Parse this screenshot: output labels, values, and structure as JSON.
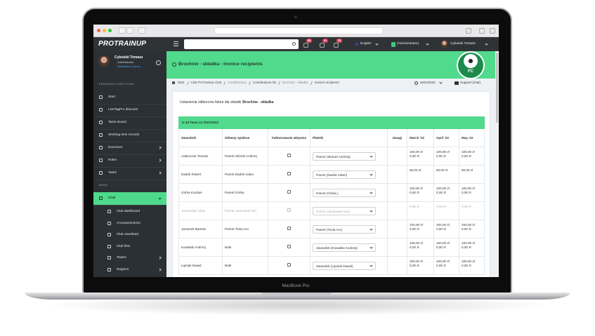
{
  "device": {
    "label": "MacBook Pro"
  },
  "header": {
    "logo": "PROTRAINUP",
    "badges": [
      "69",
      "51",
      "74"
    ],
    "language": "English",
    "role": "(Administrator)",
    "user": "Cybulski Tomasz"
  },
  "sidebar": {
    "user": {
      "name": "Cybulski Tomasz",
      "role": "Administrator",
      "plan": "Dedicated Custom"
    },
    "sections": [
      {
        "title": "PERSONAL FUNCTIONS",
        "items": [
          {
            "label": "Start",
            "expandable": false
          },
          {
            "label": "LiveTagPro discount",
            "expandable": false
          },
          {
            "label": "Tactic Board",
            "expandable": false
          },
          {
            "label": "Working time records",
            "expandable": false
          },
          {
            "label": "Exercises",
            "expandable": true
          },
          {
            "label": "Roles",
            "expandable": true
          },
          {
            "label": "Tasks",
            "expandable": true
          }
        ]
      },
      {
        "title": "MENU",
        "items": [
          {
            "label": "Club",
            "expandable": true,
            "active": true,
            "children": [
              {
                "label": "Club dashboard",
                "expandable": false
              },
              {
                "label": "Announcements",
                "expandable": false
              },
              {
                "label": "Club newsfeed",
                "expandable": false
              },
              {
                "label": "Club files",
                "expandable": false
              },
              {
                "label": "Teams",
                "expandable": true
              },
              {
                "label": "Regions",
                "expandable": true
              }
            ]
          }
        ]
      }
    ]
  },
  "page": {
    "title": "Brochów - składka - Invoice recipients",
    "badge": "FC",
    "breadcrumbs": [
      "Start",
      "Club ProTrainUp Club",
      "Contributions",
      "Contributions list",
      "Brochów - składka",
      "Invoice recipients"
    ],
    "season": "2021/2022",
    "support": "Support (chat)"
  },
  "card": {
    "intro": "Ustawienia odbiorców faktur dla składki",
    "intro_strong": "Brochów - składka"
  },
  "table": {
    "group": "U-19 Team 12 2021/2022",
    "columns": [
      "Zawodnik",
      "Główny opiekun",
      "Fakturowanie aktywne",
      "Płatnik",
      "Uwagi",
      "March '22",
      "April '22",
      "May '22"
    ],
    "rows": [
      {
        "player": "Adamczuk Tomasz",
        "guardian": "Parent Skóraś Andrzej",
        "invoicing": false,
        "payer": "Parent (Skóraś Andrzej)",
        "months": [
          [
            "100,00 zł",
            "0,00 zł"
          ],
          [
            "100,00 zł",
            "0,00 zł"
          ],
          [
            "100,00 zł",
            "0,00 zł"
          ]
        ]
      },
      {
        "player": "Dadok Robert",
        "guardian": "Parent Dadok Adam",
        "invoicing": false,
        "payer": "Parent (Dadok Adam)",
        "months": [
          [
            "50,00 zł"
          ],
          [
            "50,00 zł"
          ],
          [
            "50,00 zł"
          ]
        ]
      },
      {
        "player": "Górka Kordian",
        "guardian": "Parent Górka",
        "invoicing": false,
        "payer": "Parent (Górka )",
        "months": [
          [
            "100,00 zł",
            "0,00 zł"
          ],
          [
            "100,00 zł",
            "0,00 zł"
          ],
          [
            "100,00 zł",
            "0,00 zł"
          ]
        ]
      },
      {
        "player": "Jankowiak Adam",
        "guardian": "Parent Jankowiak test",
        "invoicing": false,
        "payer": "Parent (Jankowiak test)",
        "inactive": true,
        "months": [
          [
            "0,00 zł"
          ],
          [
            "0,00 zł"
          ],
          [
            "0,00 zł"
          ]
        ]
      },
      {
        "player": "Jaroszek Bartosz",
        "guardian": "Parent Tonia Aro",
        "invoicing": false,
        "payer": "Parent (Tonia Aro)",
        "months": [
          [
            "100,00 zł",
            "0,00 zł"
          ],
          [
            "100,00 zł",
            "0,00 zł"
          ],
          [
            "100,00 zł",
            "0,00 zł"
          ]
        ]
      },
      {
        "player": "Kowalski Andrzej",
        "guardian": "Brak",
        "invoicing": false,
        "payer": "Zawodnik (Kowalski Andrzej)",
        "months": [
          [
            "100,00 zł",
            "0,00 zł"
          ],
          [
            "100,00 zł",
            "0,00 zł"
          ],
          [
            "100,00 zł",
            "0,00 zł"
          ]
        ]
      },
      {
        "player": "Lipniak Dawid",
        "guardian": "Brak",
        "invoicing": false,
        "payer": "Zawodnik (Lipniak Dawid)",
        "months": [
          [
            "100,00 zł",
            "0,00 zł"
          ],
          [
            "100,00 zł",
            "0,00 zł"
          ],
          [
            "100,00 zł",
            "0,00 zł"
          ]
        ]
      }
    ]
  }
}
